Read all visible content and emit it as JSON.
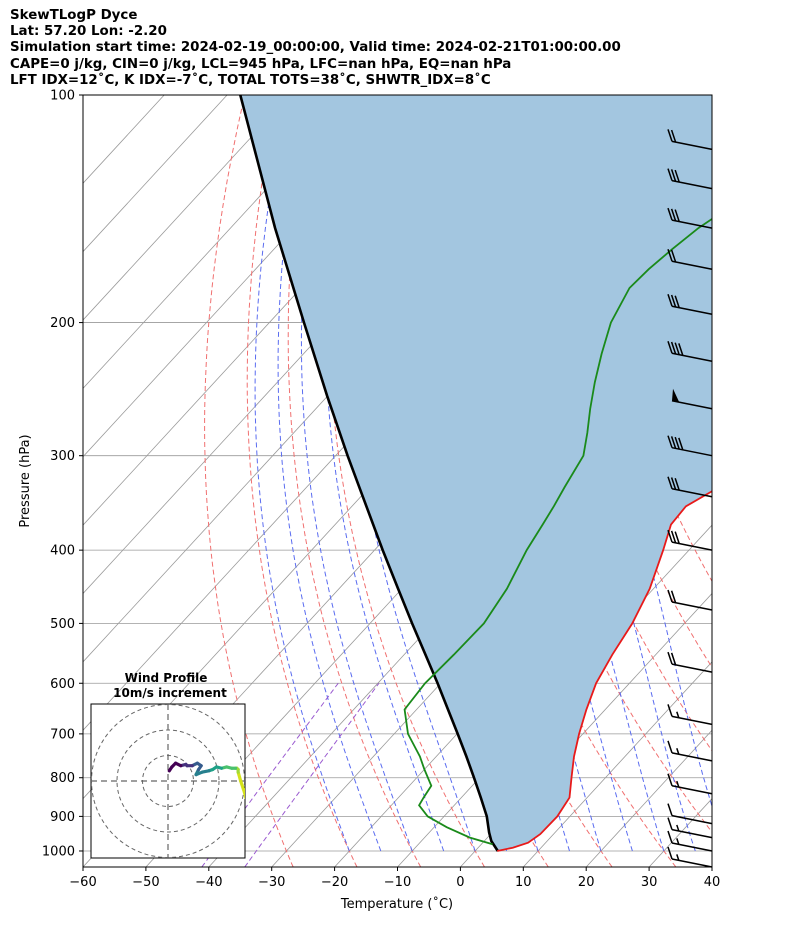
{
  "header": {
    "line1": "SkewTLogP Dyce",
    "line2": "Lat: 57.20   Lon: -2.20",
    "line3": "Simulation start time: 2024-02-19_00:00:00, Valid time: 2024-02-21T01:00:00.00",
    "line4": "CAPE=0 j/kg, CIN=0 j/kg, LCL=945 hPa, LFC=nan hPa, EQ=nan hPa",
    "line5": "LFT IDX=12˚C, K IDX=-7˚C, TOTAL TOTS=38˚C, SHWTR_IDX=8˚C"
  },
  "chart_data": {
    "type": "line",
    "subtype": "skew-T log-P",
    "xlabel": "Temperature (˚C)",
    "ylabel": "Pressure (hPa)",
    "xlim": [
      -60,
      40
    ],
    "ylim": [
      1050,
      100
    ],
    "yscale": "log",
    "grid": true,
    "x_ticks": [
      "−60",
      "−50",
      "−40",
      "−30",
      "−20",
      "−10",
      "0",
      "10",
      "20",
      "30",
      "40"
    ],
    "y_ticks": [
      "100",
      "200",
      "300",
      "400",
      "500",
      "600",
      "700",
      "800",
      "900",
      "1000"
    ],
    "colors": {
      "temperature": "#e81a1a",
      "dewpoint": "#1a8a1a",
      "parcel": "#000000",
      "shade": "#a3c6e0",
      "dry_adiabat": "#f07070",
      "moist_adiabat": "#5a6cf0",
      "mixing_ratio": "#9a5ad0",
      "isotherm": "#9a9a9a"
    },
    "series": [
      {
        "name": "",
        "role": "temperature",
        "points": [
          [
            1000,
            3.5
          ],
          [
            990,
            5.5
          ],
          [
            975,
            7.2
          ],
          [
            950,
            7.9
          ],
          [
            900,
            8.0
          ],
          [
            850,
            7.2
          ],
          [
            800,
            4.6
          ],
          [
            750,
            1.9
          ],
          [
            700,
            -0.6
          ],
          [
            650,
            -3.0
          ],
          [
            600,
            -5.3
          ],
          [
            550,
            -6.9
          ],
          [
            500,
            -8.3
          ],
          [
            450,
            -10.6
          ],
          [
            400,
            -14.1
          ],
          [
            370,
            -16.6
          ],
          [
            350,
            -16.9
          ],
          [
            330,
            -14.4
          ],
          [
            300,
            -14.8
          ],
          [
            275,
            -16.5
          ],
          [
            250,
            -16.4
          ],
          [
            230,
            -14.9
          ],
          [
            210,
            -11.3
          ],
          [
            200,
            -9.9
          ],
          [
            190,
            -8.8
          ],
          [
            180,
            -8.0
          ],
          [
            170,
            -8.9
          ],
          [
            160,
            -10.1
          ],
          [
            150,
            -10.0
          ],
          [
            140,
            -9.0
          ],
          [
            130,
            -7.3
          ],
          [
            120,
            -6.2
          ],
          [
            110,
            -5.6
          ],
          [
            100,
            -5.6
          ]
        ]
      },
      {
        "name": "",
        "role": "dewpoint",
        "points": [
          [
            980,
            1.8
          ],
          [
            960,
            -2.8
          ],
          [
            930,
            -8.0
          ],
          [
            900,
            -12.6
          ],
          [
            870,
            -15.6
          ],
          [
            850,
            -16.0
          ],
          [
            820,
            -16.5
          ],
          [
            780,
            -20.0
          ],
          [
            750,
            -22.6
          ],
          [
            700,
            -27.8
          ],
          [
            650,
            -31.9
          ],
          [
            600,
            -32.5
          ],
          [
            550,
            -32.1
          ],
          [
            500,
            -31.9
          ],
          [
            450,
            -33.3
          ],
          [
            400,
            -35.8
          ],
          [
            370,
            -37.0
          ],
          [
            350,
            -37.9
          ],
          [
            330,
            -39.0
          ],
          [
            300,
            -40.6
          ],
          [
            280,
            -43.3
          ],
          [
            260,
            -46.4
          ],
          [
            240,
            -49.5
          ],
          [
            220,
            -52.6
          ],
          [
            200,
            -55.7
          ],
          [
            180,
            -57.8
          ],
          [
            170,
            -57.5
          ],
          [
            160,
            -56.7
          ],
          [
            150,
            -55.6
          ],
          [
            140,
            -53.6
          ],
          [
            130,
            -51.0
          ],
          [
            120,
            -48.2
          ],
          [
            100,
            -43.0
          ]
        ]
      },
      {
        "name": "",
        "role": "parcel",
        "points": [
          [
            1000,
            3.6
          ],
          [
            970,
            1.1
          ],
          [
            945,
            -0.5
          ],
          [
            900,
            -3.2
          ],
          [
            850,
            -6.9
          ],
          [
            800,
            -10.9
          ],
          [
            750,
            -15.2
          ],
          [
            700,
            -19.9
          ],
          [
            650,
            -25.0
          ],
          [
            600,
            -30.5
          ],
          [
            550,
            -36.6
          ],
          [
            500,
            -43.3
          ],
          [
            450,
            -50.6
          ],
          [
            400,
            -58.7
          ],
          [
            350,
            -67.7
          ],
          [
            300,
            -78.1
          ],
          [
            250,
            -90.1
          ],
          [
            200,
            -104.5
          ],
          [
            150,
            -122.9
          ],
          [
            100,
            -147.9
          ]
        ]
      }
    ],
    "wind_barbs": [
      {
        "p": 1050,
        "direction": "from-west",
        "full_barbs": 1,
        "half_barbs": 1,
        "flags": 0
      },
      {
        "p": 1000,
        "direction": "from-west",
        "full_barbs": 1,
        "half_barbs": 1,
        "flags": 0
      },
      {
        "p": 960,
        "direction": "from-west",
        "full_barbs": 1,
        "half_barbs": 1,
        "flags": 0
      },
      {
        "p": 920,
        "direction": "from-west",
        "full_barbs": 1,
        "half_barbs": 0,
        "flags": 0
      },
      {
        "p": 840,
        "direction": "from-west",
        "full_barbs": 1,
        "half_barbs": 1,
        "flags": 0
      },
      {
        "p": 760,
        "direction": "from-west",
        "full_barbs": 1,
        "half_barbs": 1,
        "flags": 0
      },
      {
        "p": 680,
        "direction": "from-west",
        "full_barbs": 1,
        "half_barbs": 1,
        "flags": 0
      },
      {
        "p": 580,
        "direction": "from-west",
        "full_barbs": 2,
        "half_barbs": 0,
        "flags": 0
      },
      {
        "p": 480,
        "direction": "from-west",
        "full_barbs": 2,
        "half_barbs": 0,
        "flags": 0
      },
      {
        "p": 400,
        "direction": "from-west",
        "full_barbs": 3,
        "half_barbs": 0,
        "flags": 0
      },
      {
        "p": 340,
        "direction": "from-west",
        "full_barbs": 3,
        "half_barbs": 0,
        "flags": 0
      },
      {
        "p": 300,
        "direction": "from-west",
        "full_barbs": 4,
        "half_barbs": 0,
        "flags": 0
      },
      {
        "p": 260,
        "direction": "from-west",
        "full_barbs": 0,
        "half_barbs": 0,
        "flags": 1
      },
      {
        "p": 225,
        "direction": "from-west",
        "full_barbs": 4,
        "half_barbs": 0,
        "flags": 0
      },
      {
        "p": 195,
        "direction": "from-west",
        "full_barbs": 3,
        "half_barbs": 0,
        "flags": 0
      },
      {
        "p": 170,
        "direction": "from-west",
        "full_barbs": 2,
        "half_barbs": 0,
        "flags": 0
      },
      {
        "p": 150,
        "direction": "from-west",
        "full_barbs": 3,
        "half_barbs": 0,
        "flags": 0
      },
      {
        "p": 133,
        "direction": "from-west",
        "full_barbs": 3,
        "half_barbs": 0,
        "flags": 0
      },
      {
        "p": 118,
        "direction": "from-west",
        "full_barbs": 2,
        "half_barbs": 0,
        "flags": 0
      }
    ],
    "hodograph": {
      "title": "Wind Profile",
      "subtitle": "10m/s increment",
      "ring_count": 3,
      "ring_step_ms": 10,
      "points": [
        [
          30.5,
          -6.5
        ],
        [
          30.0,
          -4.5
        ],
        [
          29.5,
          -3.0
        ],
        [
          28.5,
          0.0
        ],
        [
          27.5,
          3.5
        ],
        [
          27.5,
          4.5
        ],
        [
          27.0,
          5.0
        ],
        [
          26.5,
          5.0
        ],
        [
          25.0,
          5.0
        ],
        [
          23.0,
          5.5
        ],
        [
          21.0,
          5.0
        ],
        [
          19.0,
          5.5
        ],
        [
          17.5,
          4.5
        ],
        [
          16.0,
          4.0
        ],
        [
          13.5,
          3.5
        ],
        [
          11.0,
          2.5
        ],
        [
          12.0,
          4.5
        ],
        [
          13.0,
          6.0
        ],
        [
          11.5,
          7.0
        ],
        [
          9.5,
          6.0
        ],
        [
          7.5,
          6.0
        ],
        [
          7.0,
          6.5
        ],
        [
          5.0,
          6.0
        ],
        [
          3.0,
          7.0
        ],
        [
          1.5,
          5.5
        ],
        [
          0.5,
          4.0
        ]
      ]
    }
  }
}
